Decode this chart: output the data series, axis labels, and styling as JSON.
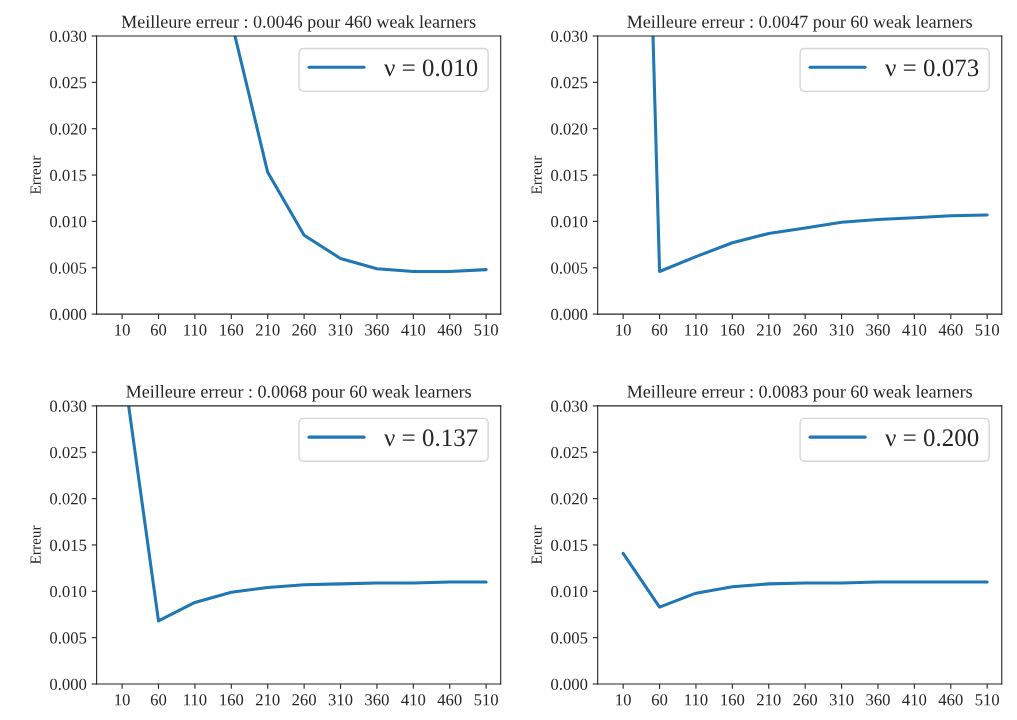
{
  "chart_data": [
    {
      "type": "line",
      "title": "Meilleure erreur : 0.0046 pour 460 weak learners",
      "ylabel": "Erreur",
      "xlim": [
        -25,
        530
      ],
      "ylim": [
        0,
        0.03
      ],
      "xticks": [
        10,
        60,
        110,
        160,
        210,
        260,
        310,
        360,
        410,
        460,
        510
      ],
      "yticks": [
        {
          "value": 0,
          "label": "0.000"
        },
        {
          "value": 0.005,
          "label": "0.005"
        },
        {
          "value": 0.01,
          "label": "0.010"
        },
        {
          "value": 0.015,
          "label": "0.015"
        },
        {
          "value": 0.02,
          "label": "0.020"
        },
        {
          "value": 0.025,
          "label": "0.025"
        },
        {
          "value": 0.03,
          "label": "0.030"
        }
      ],
      "grid": false,
      "legend": "top right",
      "marker": "none",
      "line_style": "solid",
      "series": [
        {
          "name": "ν = 0.010",
          "color": "#1f77b4",
          "x": [
            165,
            210,
            260,
            310,
            360,
            410,
            460,
            510
          ],
          "values": [
            0.03,
            0.0153,
            0.0085,
            0.006,
            0.0049,
            0.0046,
            0.0046,
            0.0048
          ]
        }
      ]
    },
    {
      "type": "line",
      "title": "Meilleure erreur : 0.0047 pour 60 weak learners",
      "ylabel": "Erreur",
      "xlim": [
        -25,
        530
      ],
      "ylim": [
        0,
        0.03
      ],
      "xticks": [
        10,
        60,
        110,
        160,
        210,
        260,
        310,
        360,
        410,
        460,
        510
      ],
      "yticks": [
        {
          "value": 0,
          "label": "0.000"
        },
        {
          "value": 0.005,
          "label": "0.005"
        },
        {
          "value": 0.01,
          "label": "0.010"
        },
        {
          "value": 0.015,
          "label": "0.015"
        },
        {
          "value": 0.02,
          "label": "0.020"
        },
        {
          "value": 0.025,
          "label": "0.025"
        },
        {
          "value": 0.03,
          "label": "0.030"
        }
      ],
      "grid": false,
      "legend": "top right",
      "marker": "none",
      "line_style": "solid",
      "series": [
        {
          "name": "ν = 0.073",
          "color": "#1f77b4",
          "x": [
            51,
            60,
            110,
            160,
            210,
            260,
            310,
            360,
            410,
            460,
            510
          ],
          "values": [
            0.03,
            0.0046,
            0.0062,
            0.0077,
            0.0087,
            0.0093,
            0.0099,
            0.0102,
            0.0104,
            0.0106,
            0.0107
          ]
        }
      ]
    },
    {
      "type": "line",
      "title": "Meilleure erreur : 0.0068 pour 60 weak learners",
      "ylabel": "Erreur",
      "xlim": [
        -25,
        530
      ],
      "ylim": [
        0,
        0.03
      ],
      "xticks": [
        10,
        60,
        110,
        160,
        210,
        260,
        310,
        360,
        410,
        460,
        510
      ],
      "yticks": [
        {
          "value": 0,
          "label": "0.000"
        },
        {
          "value": 0.005,
          "label": "0.005"
        },
        {
          "value": 0.01,
          "label": "0.010"
        },
        {
          "value": 0.015,
          "label": "0.015"
        },
        {
          "value": 0.02,
          "label": "0.020"
        },
        {
          "value": 0.025,
          "label": "0.025"
        },
        {
          "value": 0.03,
          "label": "0.030"
        }
      ],
      "grid": false,
      "legend": "top right",
      "marker": "none",
      "line_style": "solid",
      "series": [
        {
          "name": "ν = 0.137",
          "color": "#1f77b4",
          "x": [
            19,
            60,
            110,
            160,
            210,
            260,
            310,
            360,
            410,
            460,
            510
          ],
          "values": [
            0.03,
            0.0068,
            0.0088,
            0.0099,
            0.0104,
            0.0107,
            0.0108,
            0.0109,
            0.0109,
            0.011,
            0.011
          ]
        }
      ]
    },
    {
      "type": "line",
      "title": "Meilleure erreur : 0.0083 pour 60 weak learners",
      "ylabel": "Erreur",
      "xlim": [
        -25,
        530
      ],
      "ylim": [
        0,
        0.03
      ],
      "xticks": [
        10,
        60,
        110,
        160,
        210,
        260,
        310,
        360,
        410,
        460,
        510
      ],
      "yticks": [
        {
          "value": 0,
          "label": "0.000"
        },
        {
          "value": 0.005,
          "label": "0.005"
        },
        {
          "value": 0.01,
          "label": "0.010"
        },
        {
          "value": 0.015,
          "label": "0.015"
        },
        {
          "value": 0.02,
          "label": "0.020"
        },
        {
          "value": 0.025,
          "label": "0.025"
        },
        {
          "value": 0.03,
          "label": "0.030"
        }
      ],
      "grid": false,
      "legend": "top right",
      "marker": "none",
      "line_style": "solid",
      "series": [
        {
          "name": "ν = 0.200",
          "color": "#1f77b4",
          "x": [
            10,
            60,
            110,
            160,
            210,
            260,
            310,
            360,
            410,
            460,
            510
          ],
          "values": [
            0.0141,
            0.0083,
            0.0098,
            0.0105,
            0.0108,
            0.0109,
            0.0109,
            0.011,
            0.011,
            0.011,
            0.011
          ]
        }
      ]
    }
  ]
}
